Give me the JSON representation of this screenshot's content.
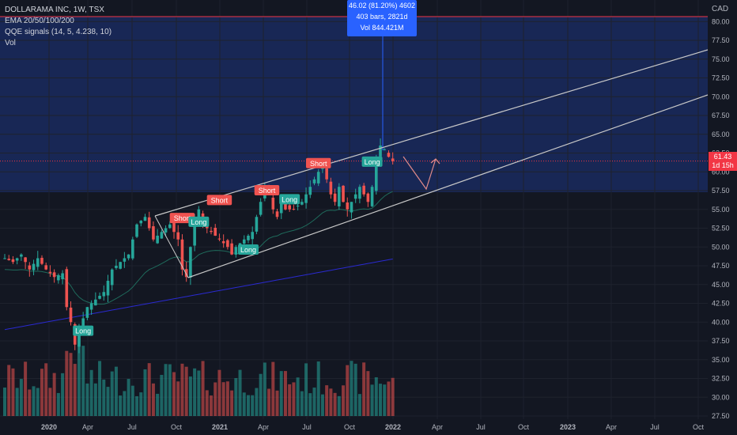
{
  "header": {
    "symbol": "DOLLARAMA INC, 1W, TSX",
    "indicators": [
      "EMA 20/50/100/200",
      "QQE signals (14, 5, 4.238, 10)",
      "Vol"
    ],
    "currency": "CAD"
  },
  "measure_box": {
    "line1": "46.02 (81.20%) 4602",
    "line2": "403 bars, 2821d",
    "line3": "Vol 844.421M"
  },
  "price_tag": {
    "price": "61.43",
    "countdown": "1d 15h"
  },
  "colors": {
    "background": "#131722",
    "up": "#26a69a",
    "down": "#ef5350",
    "measure": "#2962ff",
    "ema_fast": "#1f6b5c",
    "ema_slow": "#2a2ad0",
    "channel": "#c8c8c8",
    "projection": "#e08a8a"
  },
  "chart_data": {
    "type": "candlestick",
    "title": "DOLLARAMA INC, 1W, TSX",
    "ylim": [
      27.5,
      80
    ],
    "y_ticks": [
      "80.00",
      "77.50",
      "75.00",
      "72.50",
      "70.00",
      "67.50",
      "65.00",
      "62.50",
      "60.00",
      "57.50",
      "55.00",
      "52.50",
      "50.00",
      "47.50",
      "45.00",
      "42.50",
      "40.00",
      "37.50",
      "35.00",
      "32.50",
      "30.00",
      "27.50"
    ],
    "x_ticks": [
      "2020",
      "Apr",
      "Jul",
      "Oct",
      "2021",
      "Apr",
      "Jul",
      "Oct",
      "2022",
      "Apr",
      "Jul",
      "Oct",
      "2023",
      "Apr",
      "Jul",
      "Oct"
    ],
    "price_path": [
      [
        0,
        48.5
      ],
      [
        2,
        48
      ],
      [
        4,
        49
      ],
      [
        6,
        47
      ],
      [
        8,
        48.5
      ],
      [
        10,
        47
      ],
      [
        12,
        46
      ],
      [
        14,
        46.5
      ],
      [
        15,
        42
      ],
      [
        16,
        40
      ],
      [
        17,
        37
      ],
      [
        18,
        39
      ],
      [
        20,
        42
      ],
      [
        22,
        43
      ],
      [
        24,
        44
      ],
      [
        26,
        47
      ],
      [
        28,
        48
      ],
      [
        30,
        49
      ],
      [
        32,
        53
      ],
      [
        34,
        54
      ],
      [
        36,
        51
      ],
      [
        38,
        52
      ],
      [
        40,
        53
      ],
      [
        42,
        51
      ],
      [
        43,
        47
      ],
      [
        44,
        46
      ],
      [
        45,
        50
      ],
      [
        46,
        54
      ],
      [
        47,
        55
      ],
      [
        48,
        53
      ],
      [
        50,
        52
      ],
      [
        52,
        51
      ],
      [
        54,
        50
      ],
      [
        55,
        49
      ],
      [
        56,
        50
      ],
      [
        58,
        51
      ],
      [
        60,
        52
      ],
      [
        61,
        54
      ],
      [
        62,
        56
      ],
      [
        63,
        57.5
      ],
      [
        64,
        57
      ],
      [
        65,
        55
      ],
      [
        66,
        54
      ],
      [
        67,
        56
      ],
      [
        68,
        55
      ],
      [
        70,
        55
      ],
      [
        72,
        56
      ],
      [
        73,
        57
      ],
      [
        74,
        58
      ],
      [
        76,
        60
      ],
      [
        77,
        60.5
      ],
      [
        78,
        59
      ],
      [
        79,
        57
      ],
      [
        80,
        56
      ],
      [
        81,
        58
      ],
      [
        82,
        56
      ],
      [
        83,
        55
      ],
      [
        84,
        56
      ],
      [
        85,
        57
      ],
      [
        86,
        58
      ],
      [
        87,
        57
      ],
      [
        88,
        56
      ],
      [
        89,
        58
      ],
      [
        90,
        62
      ],
      [
        91,
        63.5
      ],
      [
        92,
        63
      ],
      [
        93,
        62
      ],
      [
        94,
        61.43
      ]
    ],
    "signals": [
      {
        "text": "Long",
        "week": 19,
        "price": 38.8,
        "dir": "long"
      },
      {
        "text": "Short",
        "week": 43,
        "price": 53.8,
        "dir": "short"
      },
      {
        "text": "Long",
        "week": 47,
        "price": 53.3,
        "dir": "long"
      },
      {
        "text": "Short",
        "week": 52,
        "price": 56.2,
        "dir": "short"
      },
      {
        "text": "Long",
        "week": 59,
        "price": 49.6,
        "dir": "long"
      },
      {
        "text": "Short",
        "week": 63.5,
        "price": 57.5,
        "dir": "short"
      },
      {
        "text": "Long",
        "week": 69,
        "price": 56.3,
        "dir": "long"
      },
      {
        "text": "Short",
        "week": 76,
        "price": 61.1,
        "dir": "short"
      },
      {
        "text": "Long",
        "week": 89,
        "price": 61.3,
        "dir": "long"
      }
    ]
  }
}
